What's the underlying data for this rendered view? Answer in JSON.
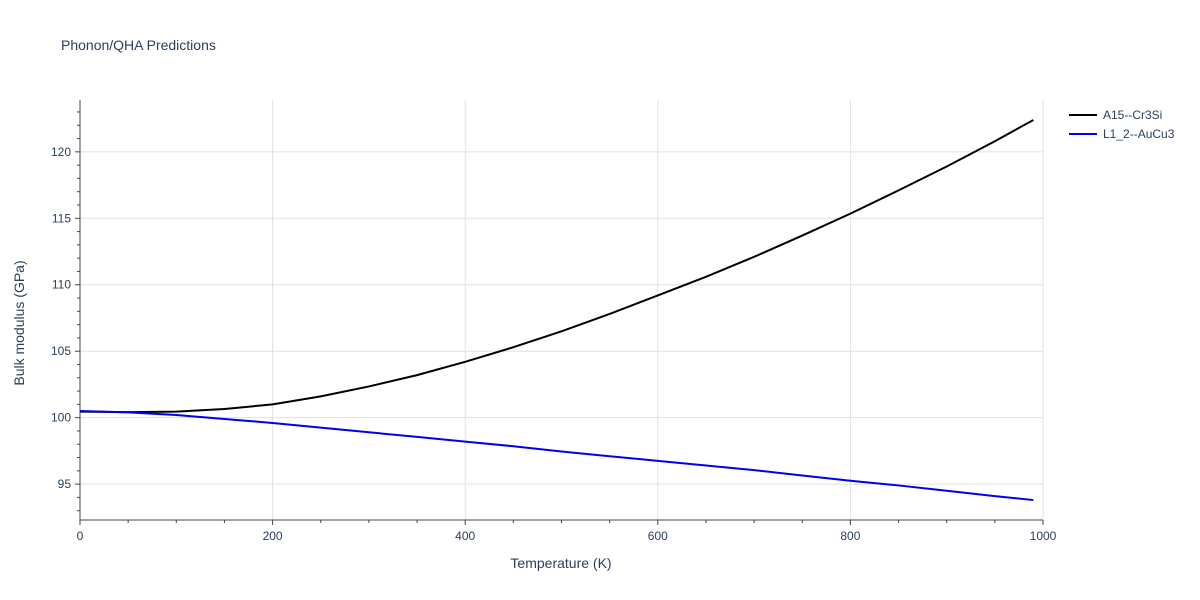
{
  "chart_data": {
    "type": "line",
    "title": "Phonon/QHA Predictions",
    "xlabel": "Temperature (K)",
    "ylabel": "Bulk modulus (GPa)",
    "xlim": [
      0,
      1000
    ],
    "ylim": [
      92.3,
      123.9
    ],
    "xticks": [
      0,
      200,
      400,
      600,
      800,
      1000
    ],
    "yticks": [
      95,
      100,
      105,
      110,
      115,
      120
    ],
    "grid": true,
    "legend_position": "top-right",
    "series": [
      {
        "name": "A15--Cr3Si",
        "color": "#000000",
        "x": [
          0,
          50,
          100,
          150,
          200,
          250,
          300,
          350,
          400,
          450,
          500,
          550,
          600,
          650,
          700,
          750,
          800,
          850,
          900,
          950,
          990
        ],
        "y": [
          100.45,
          100.42,
          100.45,
          100.65,
          101.0,
          101.6,
          102.35,
          103.2,
          104.2,
          105.3,
          106.5,
          107.8,
          109.2,
          110.6,
          112.1,
          113.7,
          115.35,
          117.1,
          118.9,
          120.8,
          122.4
        ]
      },
      {
        "name": "L1_2--AuCu3",
        "color": "#0000ee",
        "x": [
          0,
          50,
          100,
          150,
          200,
          250,
          300,
          350,
          400,
          450,
          500,
          550,
          600,
          650,
          700,
          750,
          800,
          850,
          900,
          950,
          990
        ],
        "y": [
          100.5,
          100.4,
          100.2,
          99.9,
          99.6,
          99.25,
          98.9,
          98.55,
          98.2,
          97.85,
          97.45,
          97.1,
          96.75,
          96.4,
          96.05,
          95.65,
          95.25,
          94.9,
          94.5,
          94.1,
          93.8
        ]
      }
    ]
  }
}
